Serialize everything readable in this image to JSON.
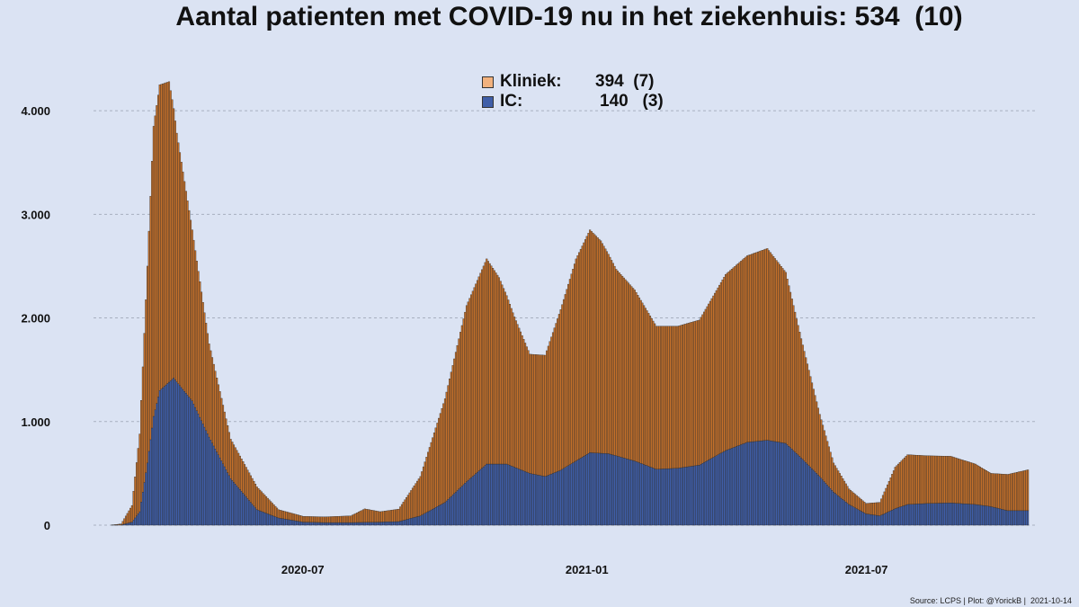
{
  "chart_data": {
    "type": "bar",
    "title": "Aantal patienten met COVID-19 nu in het ziekenhuis: 534  (10)",
    "xlabel": "",
    "ylabel": "",
    "ylim": [
      0,
      4400
    ],
    "y_ticks": [
      0,
      1000,
      2000,
      3000,
      4000
    ],
    "y_tick_labels": [
      "0",
      "1.000",
      "2.000",
      "3.000",
      "4.000"
    ],
    "x_tick_labels": [
      "2020-07",
      "2021-01",
      "2021-07"
    ],
    "x_tick_dates": [
      "2020-07-01",
      "2021-01-01",
      "2021-07-01"
    ],
    "x_range": [
      "2020-02-27",
      "2021-10-14"
    ],
    "stacked": true,
    "grid": "horizontal dashed",
    "legend_position": "top-center",
    "colors": {
      "kliniek": "#c4702a",
      "ic": "#3f5ea8",
      "bar_outline": "#2a2a2a",
      "background": "#dbe3f3",
      "grid": "#a8b0c0"
    },
    "series": [
      {
        "name": "Kliniek",
        "legend_label": "Kliniek:",
        "legend_value": "394  (7)",
        "color": "#c4702a",
        "points": [
          [
            "2020-02-27",
            0
          ],
          [
            "2020-03-05",
            10
          ],
          [
            "2020-03-12",
            160
          ],
          [
            "2020-03-17",
            750
          ],
          [
            "2020-03-22",
            1900
          ],
          [
            "2020-03-26",
            2800
          ],
          [
            "2020-03-30",
            2950
          ],
          [
            "2020-04-05",
            2900
          ],
          [
            "2020-04-10",
            2400
          ],
          [
            "2020-04-20",
            1650
          ],
          [
            "2020-05-01",
            900
          ],
          [
            "2020-05-15",
            380
          ],
          [
            "2020-06-01",
            220
          ],
          [
            "2020-06-15",
            80
          ],
          [
            "2020-07-01",
            55
          ],
          [
            "2020-07-15",
            55
          ],
          [
            "2020-08-01",
            65
          ],
          [
            "2020-08-10",
            130
          ],
          [
            "2020-08-20",
            100
          ],
          [
            "2020-09-01",
            120
          ],
          [
            "2020-09-15",
            380
          ],
          [
            "2020-10-01",
            1000
          ],
          [
            "2020-10-15",
            1700
          ],
          [
            "2020-10-28",
            1980
          ],
          [
            "2020-11-05",
            1800
          ],
          [
            "2020-11-15",
            1450
          ],
          [
            "2020-11-25",
            1150
          ],
          [
            "2020-12-05",
            1170
          ],
          [
            "2020-12-15",
            1550
          ],
          [
            "2020-12-25",
            1950
          ],
          [
            "2021-01-03",
            2150
          ],
          [
            "2021-01-10",
            2050
          ],
          [
            "2021-01-20",
            1800
          ],
          [
            "2021-02-01",
            1650
          ],
          [
            "2021-02-15",
            1380
          ],
          [
            "2021-03-01",
            1370
          ],
          [
            "2021-03-15",
            1400
          ],
          [
            "2021-04-01",
            1700
          ],
          [
            "2021-04-15",
            1800
          ],
          [
            "2021-04-28",
            1850
          ],
          [
            "2021-05-10",
            1650
          ],
          [
            "2021-05-20",
            1150
          ],
          [
            "2021-06-01",
            600
          ],
          [
            "2021-06-10",
            280
          ],
          [
            "2021-06-20",
            150
          ],
          [
            "2021-07-01",
            100
          ],
          [
            "2021-07-10",
            130
          ],
          [
            "2021-07-20",
            400
          ],
          [
            "2021-07-28",
            480
          ],
          [
            "2021-08-10",
            460
          ],
          [
            "2021-08-25",
            450
          ],
          [
            "2021-09-10",
            390
          ],
          [
            "2021-09-20",
            320
          ],
          [
            "2021-10-01",
            350
          ],
          [
            "2021-10-14",
            394
          ]
        ]
      },
      {
        "name": "IC",
        "legend_label": "IC:",
        "legend_value": "140   (3)",
        "color": "#3f5ea8",
        "points": [
          [
            "2020-02-27",
            0
          ],
          [
            "2020-03-05",
            2
          ],
          [
            "2020-03-12",
            30
          ],
          [
            "2020-03-17",
            130
          ],
          [
            "2020-03-22",
            600
          ],
          [
            "2020-03-26",
            1050
          ],
          [
            "2020-03-30",
            1300
          ],
          [
            "2020-04-08",
            1420
          ],
          [
            "2020-04-20",
            1200
          ],
          [
            "2020-05-01",
            850
          ],
          [
            "2020-05-15",
            450
          ],
          [
            "2020-06-01",
            150
          ],
          [
            "2020-06-15",
            70
          ],
          [
            "2020-07-01",
            30
          ],
          [
            "2020-07-15",
            25
          ],
          [
            "2020-08-01",
            25
          ],
          [
            "2020-08-20",
            30
          ],
          [
            "2020-09-01",
            35
          ],
          [
            "2020-09-15",
            90
          ],
          [
            "2020-10-01",
            220
          ],
          [
            "2020-10-15",
            420
          ],
          [
            "2020-10-28",
            590
          ],
          [
            "2020-11-10",
            590
          ],
          [
            "2020-11-25",
            500
          ],
          [
            "2020-12-05",
            470
          ],
          [
            "2020-12-15",
            530
          ],
          [
            "2020-12-25",
            620
          ],
          [
            "2021-01-03",
            700
          ],
          [
            "2021-01-15",
            690
          ],
          [
            "2021-02-01",
            620
          ],
          [
            "2021-02-15",
            540
          ],
          [
            "2021-03-01",
            550
          ],
          [
            "2021-03-15",
            580
          ],
          [
            "2021-04-01",
            720
          ],
          [
            "2021-04-15",
            800
          ],
          [
            "2021-04-28",
            820
          ],
          [
            "2021-05-10",
            790
          ],
          [
            "2021-05-20",
            650
          ],
          [
            "2021-06-01",
            470
          ],
          [
            "2021-06-10",
            320
          ],
          [
            "2021-06-20",
            200
          ],
          [
            "2021-07-01",
            110
          ],
          [
            "2021-07-10",
            90
          ],
          [
            "2021-07-20",
            160
          ],
          [
            "2021-07-28",
            200
          ],
          [
            "2021-08-10",
            210
          ],
          [
            "2021-08-25",
            215
          ],
          [
            "2021-09-10",
            200
          ],
          [
            "2021-09-20",
            180
          ],
          [
            "2021-10-01",
            140
          ],
          [
            "2021-10-14",
            140
          ]
        ]
      }
    ]
  },
  "source_note": "Source: LCPS | Plot: @YorickB |  2021-10-14"
}
